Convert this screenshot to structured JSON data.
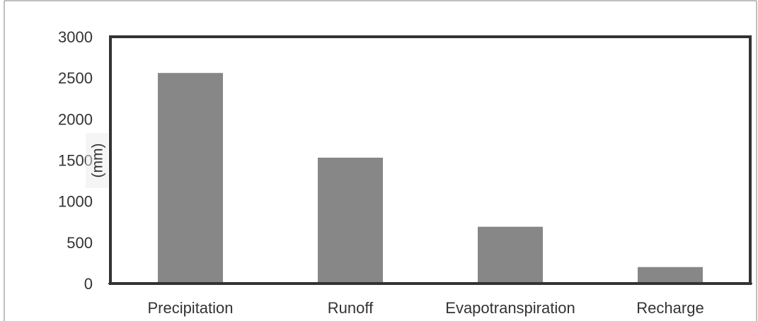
{
  "chart_data": {
    "type": "bar",
    "title": "",
    "xlabel": "",
    "ylabel": "(mm)",
    "categories": [
      "Precipitation",
      "Runoff",
      "Evapotranspiration",
      "Recharge"
    ],
    "values": [
      2560,
      1530,
      690,
      200
    ],
    "ylim": [
      0,
      3000
    ],
    "yticks": [
      0,
      500,
      1000,
      1500,
      2000,
      2500,
      3000
    ],
    "grid": false,
    "legend": "none",
    "colors": {
      "bar": "#878787",
      "frame": "#333333",
      "text": "#333333"
    }
  }
}
